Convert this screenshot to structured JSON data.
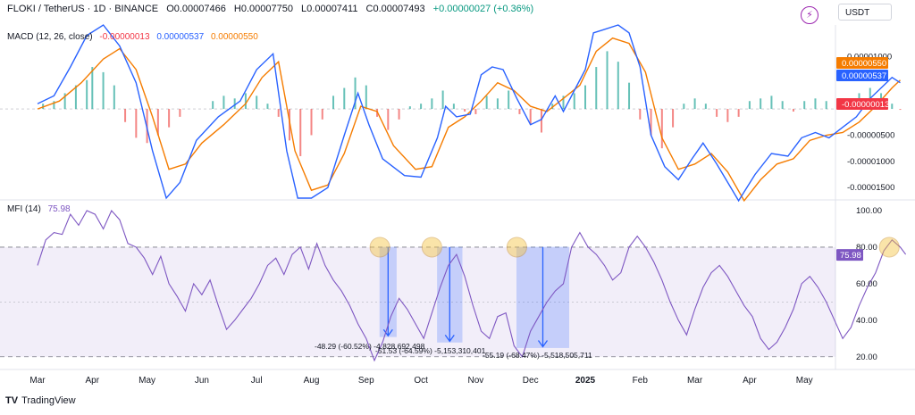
{
  "header": {
    "symbol": "FLOKI / TetherUS · 1D · BINANCE",
    "open": "O0.00007466",
    "high": "H0.00007750",
    "low": "L0.00007411",
    "close": "C0.00007493",
    "change": "+0.00000027 (+0.36%)"
  },
  "toolbar": {
    "currency_label": "USDT",
    "flash_icon": "lightning-icon"
  },
  "branding": {
    "name": "TradingView"
  },
  "macd": {
    "label": "MACD (12, 26, close)",
    "hist_value": "-0.00000013",
    "macd_value": "0.00000537",
    "signal_value": "0.00000550",
    "axis_ticks": [
      "0.00001000",
      "-0.00000500",
      "-0.00001000",
      "-0.00001500"
    ],
    "badges": [
      {
        "text": "0.00000550",
        "color": "#f57c00"
      },
      {
        "text": "0.00000537",
        "color": "#2962ff"
      },
      {
        "text": "-0.00000013",
        "color": "#f23645"
      }
    ]
  },
  "mfi": {
    "label": "MFI (14)",
    "value": "75.98",
    "axis_ticks": [
      "100.00",
      "80.00",
      "60.00",
      "40.00",
      "20.00"
    ],
    "badge": "75.98"
  },
  "annotations": [
    "-48.29 (-60.52%) -4,828,692,498",
    "-51.53 (-64.59%) -5,153,310,401",
    "-55.19 (-68.47%) -5,518,505,711"
  ],
  "chart_data": {
    "type": "line",
    "x_axis_labels": [
      "Mar",
      "Apr",
      "May",
      "Jun",
      "Jul",
      "Aug",
      "Sep",
      "Oct",
      "Nov",
      "Dec",
      "2025",
      "Feb",
      "Mar",
      "Apr",
      "May"
    ],
    "colors": {
      "macd": "#2962ff",
      "signal": "#f57c00",
      "hist_pos": "#26a69a",
      "hist_neg": "#ef5350",
      "mfi": "#7e57c2"
    },
    "macd_panel": {
      "ylim": [
        -1.7e-05,
        1.6e-05
      ],
      "macd_line": [
        [
          0,
          1e-06
        ],
        [
          0.3,
          2.5e-06
        ],
        [
          0.6,
          8e-06
        ],
        [
          0.9,
          1.4e-05
        ],
        [
          1.2,
          1.6e-05
        ],
        [
          1.5,
          1.2e-05
        ],
        [
          1.8,
          5e-06
        ],
        [
          2.1,
          -8e-06
        ],
        [
          2.35,
          -1.7e-05
        ],
        [
          2.6,
          -1.4e-05
        ],
        [
          2.9,
          -6e-06
        ],
        [
          3.3,
          -1.5e-06
        ],
        [
          3.7,
          1.5e-06
        ],
        [
          4.0,
          7.5e-06
        ],
        [
          4.3,
          1.05e-05
        ],
        [
          4.55,
          -8e-06
        ],
        [
          4.75,
          -1.7e-05
        ],
        [
          5.0,
          -1.7e-05
        ],
        [
          5.3,
          -1.5e-05
        ],
        [
          5.6,
          -5e-06
        ],
        [
          5.85,
          3e-06
        ],
        [
          6.05,
          -3e-06
        ],
        [
          6.3,
          -9.5e-06
        ],
        [
          6.7,
          -1.27e-05
        ],
        [
          7.0,
          -1.3e-05
        ],
        [
          7.3,
          -5.5e-06
        ],
        [
          7.45,
          5e-07
        ],
        [
          7.65,
          -1.5e-06
        ],
        [
          7.9,
          -1e-06
        ],
        [
          8.1,
          6.5e-06
        ],
        [
          8.3,
          8e-06
        ],
        [
          8.5,
          7.5e-06
        ],
        [
          8.75,
          2e-06
        ],
        [
          9.0,
          -3e-06
        ],
        [
          9.2,
          -2e-06
        ],
        [
          9.45,
          2.5e-06
        ],
        [
          9.6,
          -5e-07
        ],
        [
          9.8,
          3.5e-06
        ],
        [
          10.0,
          7.5e-06
        ],
        [
          10.15,
          1.45e-05
        ],
        [
          10.3,
          1.5e-05
        ],
        [
          10.6,
          1.6e-05
        ],
        [
          10.8,
          1.45e-05
        ],
        [
          11.0,
          8e-06
        ],
        [
          11.2,
          -5e-06
        ],
        [
          11.45,
          -1.1e-05
        ],
        [
          11.7,
          -1.35e-05
        ],
        [
          11.95,
          -9.5e-06
        ],
        [
          12.15,
          -6.5e-06
        ],
        [
          12.4,
          -1.05e-05
        ],
        [
          12.6,
          -1.4e-05
        ],
        [
          12.8,
          -1.75e-05
        ],
        [
          13.1,
          -1.25e-05
        ],
        [
          13.4,
          -8.5e-06
        ],
        [
          13.7,
          -9e-06
        ],
        [
          13.95,
          -5.5e-06
        ],
        [
          14.2,
          -4.5e-06
        ],
        [
          14.45,
          -5.5e-06
        ],
        [
          14.7,
          -3.5e-06
        ],
        [
          14.95,
          -1.5e-06
        ],
        [
          15.2,
          2e-06
        ],
        [
          15.45,
          4.5e-06
        ],
        [
          15.6,
          6e-06
        ],
        [
          15.75,
          5e-06
        ]
      ],
      "signal_line": [
        [
          0,
          0.0
        ],
        [
          0.4,
          1.5e-06
        ],
        [
          0.8,
          5e-06
        ],
        [
          1.2,
          9.5e-06
        ],
        [
          1.5,
          1.15e-05
        ],
        [
          1.8,
          7.5e-06
        ],
        [
          2.1,
          -1.5e-06
        ],
        [
          2.4,
          -1.15e-05
        ],
        [
          2.7,
          -1.05e-05
        ],
        [
          3.0,
          -6.5e-06
        ],
        [
          3.4,
          -3e-06
        ],
        [
          3.8,
          1e-06
        ],
        [
          4.1,
          6e-06
        ],
        [
          4.4,
          9e-06
        ],
        [
          4.7,
          -8e-06
        ],
        [
          5.0,
          -1.55e-05
        ],
        [
          5.3,
          -1.45e-05
        ],
        [
          5.6,
          -8.5e-06
        ],
        [
          5.9,
          5e-07
        ],
        [
          6.2,
          -5e-07
        ],
        [
          6.5,
          -7e-06
        ],
        [
          6.9,
          -1.15e-05
        ],
        [
          7.2,
          -1.1e-05
        ],
        [
          7.5,
          -3.5e-06
        ],
        [
          7.8,
          -1.5e-06
        ],
        [
          8.1,
          1.5e-06
        ],
        [
          8.4,
          5e-06
        ],
        [
          8.7,
          3.5e-06
        ],
        [
          9.0,
          5e-07
        ],
        [
          9.3,
          -5e-07
        ],
        [
          9.6,
          2e-06
        ],
        [
          9.9,
          4.5e-06
        ],
        [
          10.2,
          1.1e-05
        ],
        [
          10.5,
          1.35e-05
        ],
        [
          10.8,
          1.25e-05
        ],
        [
          11.1,
          7e-06
        ],
        [
          11.4,
          -5.5e-06
        ],
        [
          11.7,
          -1.15e-05
        ],
        [
          12.0,
          -1.05e-05
        ],
        [
          12.3,
          -8.5e-06
        ],
        [
          12.6,
          -1.2e-05
        ],
        [
          12.9,
          -1.75e-05
        ],
        [
          13.2,
          -1.35e-05
        ],
        [
          13.5,
          -1.05e-05
        ],
        [
          13.8,
          -9.5e-06
        ],
        [
          14.1,
          -6e-06
        ],
        [
          14.4,
          -5e-06
        ],
        [
          14.7,
          -4.5e-06
        ],
        [
          15.0,
          -2.5e-06
        ],
        [
          15.3,
          5e-07
        ],
        [
          15.6,
          4e-06
        ],
        [
          15.75,
          5.5e-06
        ]
      ],
      "histogram": [
        [
          0.1,
          1e-06
        ],
        [
          0.3,
          1.5e-06
        ],
        [
          0.5,
          3e-06
        ],
        [
          0.7,
          4.5e-06
        ],
        [
          0.9,
          5.5e-06
        ],
        [
          1.0,
          8e-06
        ],
        [
          1.2,
          7e-06
        ],
        [
          1.4,
          4.5e-06
        ],
        [
          1.6,
          -2.5e-06
        ],
        [
          1.8,
          -5.5e-06
        ],
        [
          2.0,
          -6.5e-06
        ],
        [
          2.2,
          -5e-06
        ],
        [
          2.4,
          -3.5e-06
        ],
        [
          2.6,
          -1.5e-06
        ],
        [
          3.2,
          1.5e-06
        ],
        [
          3.4,
          2.5e-06
        ],
        [
          3.6,
          2e-06
        ],
        [
          3.8,
          3e-06
        ],
        [
          4.0,
          2.5e-06
        ],
        [
          4.2,
          1e-06
        ],
        [
          4.4,
          -1.5e-06
        ],
        [
          4.6,
          -6e-06
        ],
        [
          4.8,
          -9e-06
        ],
        [
          5.0,
          -5e-06
        ],
        [
          5.2,
          -2e-06
        ],
        [
          5.4,
          2.5e-06
        ],
        [
          5.6,
          4e-06
        ],
        [
          5.8,
          6e-06
        ],
        [
          6.0,
          4.5e-06
        ],
        [
          6.2,
          -1.5e-06
        ],
        [
          6.4,
          -4e-06
        ],
        [
          6.6,
          -2e-06
        ],
        [
          6.8,
          5e-07
        ],
        [
          7.0,
          1e-06
        ],
        [
          7.2,
          2e-06
        ],
        [
          7.4,
          3.5e-06
        ],
        [
          7.6,
          1e-06
        ],
        [
          7.8,
          -5e-07
        ],
        [
          8.0,
          -1e-06
        ],
        [
          8.2,
          2.5e-06
        ],
        [
          8.4,
          2e-06
        ],
        [
          8.6,
          3.5e-06
        ],
        [
          8.8,
          -1e-06
        ],
        [
          9.0,
          -3e-06
        ],
        [
          9.2,
          -4.5e-06
        ],
        [
          9.4,
          1e-06
        ],
        [
          9.6,
          2.5e-06
        ],
        [
          9.8,
          3e-06
        ],
        [
          10.0,
          4.5e-06
        ],
        [
          10.2,
          8e-06
        ],
        [
          10.4,
          1.1e-05
        ],
        [
          10.6,
          9e-06
        ],
        [
          10.8,
          5e-06
        ],
        [
          11.0,
          -2e-06
        ],
        [
          11.2,
          -5e-06
        ],
        [
          11.4,
          -7.5e-06
        ],
        [
          11.6,
          -3.5e-06
        ],
        [
          11.8,
          1e-06
        ],
        [
          12.0,
          2e-06
        ],
        [
          12.2,
          1e-06
        ],
        [
          12.4,
          -1.5e-06
        ],
        [
          12.6,
          -2.5e-06
        ],
        [
          12.8,
          -1.5e-06
        ],
        [
          13.0,
          1.5e-06
        ],
        [
          13.2,
          2e-06
        ],
        [
          13.4,
          2.5e-06
        ],
        [
          13.6,
          1.5e-06
        ],
        [
          13.8,
          -5e-07
        ],
        [
          14.0,
          1.5e-06
        ],
        [
          14.2,
          2e-06
        ],
        [
          14.4,
          1.5e-06
        ],
        [
          14.6,
          1e-06
        ],
        [
          14.8,
          2e-06
        ],
        [
          15.0,
          3e-06
        ],
        [
          15.2,
          4e-06
        ],
        [
          15.4,
          3e-06
        ],
        [
          15.6,
          1e-06
        ],
        [
          15.75,
          -1.3e-07
        ]
      ]
    },
    "mfi_panel": {
      "ylim": [
        15,
        100
      ],
      "line": [
        [
          0,
          70
        ],
        [
          0.15,
          84
        ],
        [
          0.3,
          88
        ],
        [
          0.45,
          87
        ],
        [
          0.6,
          98
        ],
        [
          0.75,
          92
        ],
        [
          0.9,
          100
        ],
        [
          1.05,
          98
        ],
        [
          1.2,
          90
        ],
        [
          1.35,
          100
        ],
        [
          1.5,
          95
        ],
        [
          1.65,
          82
        ],
        [
          1.8,
          80
        ],
        [
          1.95,
          74
        ],
        [
          2.1,
          65
        ],
        [
          2.25,
          75
        ],
        [
          2.4,
          60
        ],
        [
          2.55,
          53
        ],
        [
          2.7,
          45
        ],
        [
          2.85,
          60
        ],
        [
          3.0,
          54
        ],
        [
          3.15,
          62
        ],
        [
          3.3,
          48
        ],
        [
          3.45,
          35
        ],
        [
          3.6,
          40
        ],
        [
          3.75,
          46
        ],
        [
          3.9,
          52
        ],
        [
          4.05,
          60
        ],
        [
          4.2,
          70
        ],
        [
          4.35,
          74
        ],
        [
          4.5,
          65
        ],
        [
          4.65,
          76
        ],
        [
          4.8,
          80
        ],
        [
          4.95,
          68
        ],
        [
          5.1,
          82
        ],
        [
          5.25,
          70
        ],
        [
          5.4,
          62
        ],
        [
          5.55,
          56
        ],
        [
          5.7,
          48
        ],
        [
          5.85,
          38
        ],
        [
          6.0,
          30
        ],
        [
          6.15,
          18
        ],
        [
          6.3,
          28
        ],
        [
          6.45,
          42
        ],
        [
          6.6,
          52
        ],
        [
          6.75,
          46
        ],
        [
          6.9,
          38
        ],
        [
          7.05,
          30
        ],
        [
          7.2,
          44
        ],
        [
          7.35,
          58
        ],
        [
          7.5,
          70
        ],
        [
          7.65,
          76
        ],
        [
          7.8,
          64
        ],
        [
          7.95,
          48
        ],
        [
          8.1,
          34
        ],
        [
          8.25,
          30
        ],
        [
          8.4,
          42
        ],
        [
          8.55,
          44
        ],
        [
          8.7,
          26
        ],
        [
          8.85,
          20
        ],
        [
          9.0,
          34
        ],
        [
          9.15,
          42
        ],
        [
          9.3,
          50
        ],
        [
          9.45,
          56
        ],
        [
          9.6,
          60
        ],
        [
          9.75,
          80
        ],
        [
          9.9,
          88
        ],
        [
          10.05,
          80
        ],
        [
          10.2,
          76
        ],
        [
          10.35,
          70
        ],
        [
          10.5,
          62
        ],
        [
          10.65,
          66
        ],
        [
          10.8,
          80
        ],
        [
          10.95,
          86
        ],
        [
          11.1,
          80
        ],
        [
          11.25,
          72
        ],
        [
          11.4,
          62
        ],
        [
          11.55,
          50
        ],
        [
          11.7,
          40
        ],
        [
          11.85,
          32
        ],
        [
          12.0,
          46
        ],
        [
          12.15,
          58
        ],
        [
          12.3,
          66
        ],
        [
          12.45,
          70
        ],
        [
          12.6,
          64
        ],
        [
          12.75,
          56
        ],
        [
          12.9,
          48
        ],
        [
          13.05,
          42
        ],
        [
          13.2,
          30
        ],
        [
          13.35,
          24
        ],
        [
          13.5,
          28
        ],
        [
          13.65,
          36
        ],
        [
          13.8,
          46
        ],
        [
          13.95,
          60
        ],
        [
          14.1,
          64
        ],
        [
          14.25,
          58
        ],
        [
          14.4,
          50
        ],
        [
          14.55,
          40
        ],
        [
          14.7,
          30
        ],
        [
          14.85,
          36
        ],
        [
          15.0,
          48
        ],
        [
          15.15,
          58
        ],
        [
          15.3,
          66
        ],
        [
          15.45,
          78
        ],
        [
          15.6,
          84
        ],
        [
          15.75,
          80
        ],
        [
          15.85,
          76
        ]
      ],
      "overbought": 80,
      "oversold": 20,
      "midline": 50,
      "drawdowns": [
        {
          "start_x": 6.25,
          "end_x": 6.55,
          "from": 80,
          "to": 31,
          "label": "-48.29 (-60.52%) -4,828,692,498"
        },
        {
          "start_x": 7.3,
          "end_x": 7.75,
          "from": 80,
          "to": 28,
          "label": "-51.53 (-64.59%) -5,153,310,401"
        },
        {
          "start_x": 8.75,
          "end_x": 9.7,
          "from": 80,
          "to": 25,
          "label": "-55.19 (-68.47%) -5,518,505,711"
        }
      ],
      "highlight_circles": [
        6.25,
        7.2,
        8.75,
        15.55
      ]
    }
  }
}
